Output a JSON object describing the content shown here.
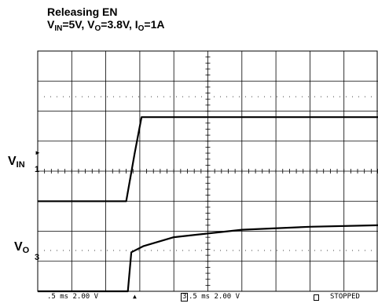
{
  "title": "Releasing EN",
  "conditions": {
    "vin_sym": "V",
    "vin_sub": "IN",
    "vin_val": "=5V, ",
    "vo_sym": "V",
    "vo_sub": "O",
    "vo_val": "=3.8V, ",
    "io_sym": "I",
    "io_sub": "O",
    "io_val": "=1A"
  },
  "channels": [
    {
      "sym": "V",
      "sub": "IN",
      "marker": "1"
    },
    {
      "sym": "V",
      "sub": "O",
      "marker": "3"
    }
  ],
  "status": {
    "ch1": ".5 ms 2.00 V",
    "ch2": ".5 ms 2.00 V",
    "ch2_marker": "3",
    "state": "STOPPED"
  },
  "chart_data": {
    "type": "line",
    "title": "Releasing EN",
    "grid": true,
    "xlim": [
      0,
      10
    ],
    "ylim": [
      0,
      8
    ],
    "xlabel": "",
    "ylabel": "",
    "series": [
      {
        "name": "VIN",
        "x": [
          0,
          2.6,
          2.85,
          3.05,
          10
        ],
        "y": [
          3.0,
          3.0,
          4.6,
          5.8,
          5.8
        ]
      },
      {
        "name": "VO",
        "x": [
          0,
          2.65,
          2.75,
          3.1,
          4.0,
          6.0,
          8.0,
          10.0
        ],
        "y": [
          0.0,
          0.0,
          1.3,
          1.5,
          1.8,
          2.05,
          2.15,
          2.2
        ]
      }
    ]
  }
}
